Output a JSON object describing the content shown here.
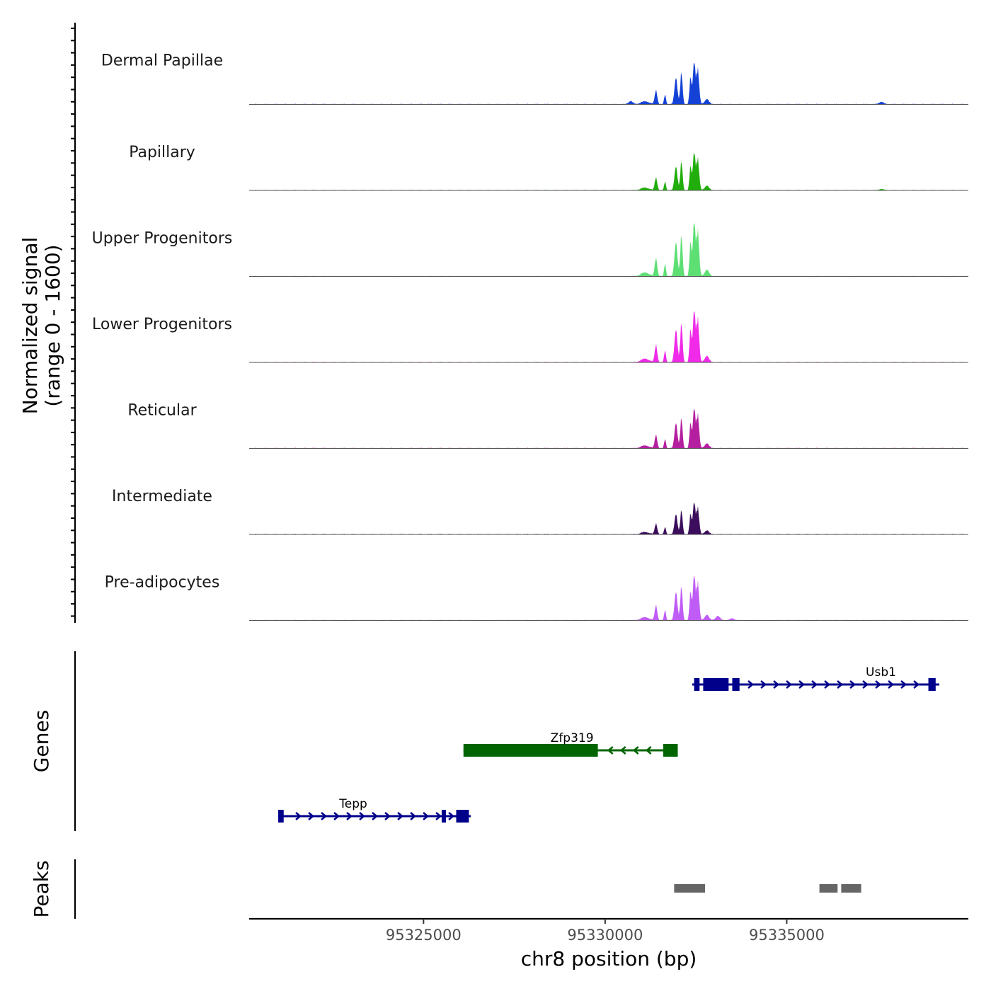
{
  "chart_data": {
    "type": "genome-track",
    "coverage": {
      "ylabel_line1": "Normalized signal",
      "ylabel_line2": "(range 0 - 1600)",
      "yrange": [
        0,
        1600
      ],
      "xrange": [
        95320200,
        95340000
      ],
      "tracks": [
        {
          "name": "Dermal Papillae",
          "color": "#1542d6",
          "peak_scale": 0.78,
          "extra_bumps": [
            [
              95330700,
              0.05
            ],
            [
              95337600,
              0.04
            ]
          ]
        },
        {
          "name": "Papillary",
          "color": "#21ad0b",
          "peak_scale": 0.7,
          "extra_bumps": [
            [
              95337600,
              0.02
            ]
          ]
        },
        {
          "name": "Upper Progenitors",
          "color": "#5ddf74",
          "peak_scale": 1.0,
          "extra_bumps": []
        },
        {
          "name": "Lower Progenitors",
          "color": "#f02ae8",
          "peak_scale": 0.96,
          "extra_bumps": []
        },
        {
          "name": "Reticular",
          "color": "#b41fa0",
          "peak_scale": 0.74,
          "extra_bumps": []
        },
        {
          "name": "Intermediate",
          "color": "#3b0d5c",
          "peak_scale": 0.59,
          "extra_bumps": []
        },
        {
          "name": "Pre-adipocytes",
          "color": "#c05cf6",
          "peak_scale": 0.83,
          "extra_bumps": [
            [
              95333100,
              0.07
            ],
            [
              95333500,
              0.03
            ]
          ]
        }
      ],
      "peak_profile": [
        {
          "pos": 95331400,
          "h": 0.32,
          "w": 55
        },
        {
          "pos": 95331650,
          "h": 0.22,
          "w": 40
        },
        {
          "pos": 95331950,
          "h": 0.6,
          "w": 65
        },
        {
          "pos": 95332100,
          "h": 0.72,
          "w": 50
        },
        {
          "pos": 95332350,
          "h": 0.6,
          "w": 45
        },
        {
          "pos": 95332450,
          "h": 0.95,
          "w": 55
        },
        {
          "pos": 95332550,
          "h": 0.8,
          "w": 60
        },
        {
          "pos": 95332800,
          "h": 0.12,
          "w": 90
        },
        {
          "pos": 95331100,
          "h": 0.06,
          "w": 180
        }
      ]
    },
    "genes": {
      "label": "Genes",
      "items": [
        {
          "name": "Usb1",
          "strand": "+",
          "start": 95332400,
          "end": 95339200,
          "color": "#00008b",
          "exons": [
            [
              95332450,
              95332600
            ],
            [
              95332700,
              95333400
            ],
            [
              95333500,
              95333700
            ],
            [
              95338900,
              95339100
            ]
          ]
        },
        {
          "name": "Zfp319",
          "strand": "-",
          "start": 95326100,
          "end": 95332000,
          "color": "#006400",
          "exons": [
            [
              95326100,
              95329800
            ],
            [
              95331600,
              95332000
            ]
          ]
        },
        {
          "name": "Tepp",
          "strand": "+",
          "start": 95321000,
          "end": 95326300,
          "color": "#00008b",
          "exons": [
            [
              95321000,
              95321150
            ],
            [
              95325500,
              95325600
            ],
            [
              95325900,
              95326250
            ]
          ]
        }
      ]
    },
    "peaks": {
      "label": "Peaks",
      "color": "#666666",
      "intervals": [
        [
          95331900,
          95332750
        ],
        [
          95335900,
          95336400
        ],
        [
          95336500,
          95337050
        ]
      ]
    },
    "xaxis": {
      "label": "chr8 position (bp)",
      "ticks": [
        95325000,
        95330000,
        95335000
      ],
      "tick_labels": [
        "95325000",
        "95330000",
        "95335000"
      ]
    }
  }
}
